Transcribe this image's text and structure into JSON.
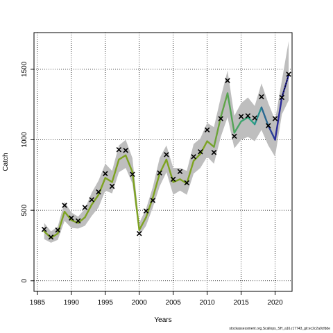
{
  "chart_data": {
    "type": "line",
    "xlabel": "Years",
    "ylabel": "Catch",
    "xlim": [
      1984.5,
      2022.5
    ],
    "ylim": [
      -75,
      1760
    ],
    "xticks": [
      1985,
      1990,
      1995,
      2000,
      2005,
      2010,
      2015,
      2020
    ],
    "yticks": [
      0,
      500,
      1000,
      1500
    ],
    "grid": true,
    "years": [
      1986,
      1987,
      1988,
      1989,
      1990,
      1991,
      1992,
      1993,
      1994,
      1995,
      1996,
      1997,
      1998,
      1999,
      2000,
      2001,
      2002,
      2003,
      2004,
      2005,
      2006,
      2007,
      2008,
      2009,
      2010,
      2011,
      2012,
      2013,
      2014,
      2015,
      2016,
      2017,
      2018,
      2019,
      2020,
      2021,
      2022
    ],
    "observed": [
      365,
      310,
      360,
      535,
      445,
      425,
      520,
      575,
      630,
      760,
      670,
      930,
      925,
      755,
      335,
      495,
      570,
      765,
      895,
      720,
      775,
      695,
      880,
      915,
      1070,
      910,
      1150,
      1420,
      1025,
      1165,
      1170,
      1155,
      1305,
      1100,
      1150,
      1300,
      1465
    ],
    "fit": [
      350,
      305,
      335,
      490,
      430,
      410,
      450,
      540,
      610,
      730,
      700,
      860,
      890,
      770,
      360,
      450,
      590,
      760,
      860,
      700,
      720,
      690,
      850,
      900,
      990,
      950,
      1160,
      1330,
      1050,
      1130,
      1160,
      1110,
      1230,
      1100,
      1000,
      1300,
      1460
    ],
    "lower": [
      295,
      270,
      290,
      425,
      375,
      370,
      390,
      460,
      520,
      640,
      620,
      770,
      800,
      690,
      320,
      390,
      520,
      670,
      770,
      610,
      640,
      610,
      760,
      800,
      880,
      830,
      1020,
      1160,
      940,
      1000,
      1020,
      990,
      1070,
      960,
      880,
      1180,
      1280
    ],
    "upper": [
      410,
      350,
      385,
      560,
      485,
      455,
      510,
      625,
      710,
      830,
      780,
      960,
      1000,
      870,
      410,
      510,
      665,
      870,
      960,
      800,
      800,
      780,
      970,
      1010,
      1120,
      1090,
      1300,
      1490,
      1170,
      1260,
      1300,
      1240,
      1400,
      1260,
      1140,
      1420,
      1700
    ],
    "colors": {
      "band": "#bebebe",
      "fit_start": "#7ea321",
      "fit_mid": "#2aa58a",
      "fit_end": "#2a2a9a",
      "points": "#000000",
      "grid": "#000000"
    }
  },
  "footer": "stockassessment.org,Scallops_SH_a16,r17743_git:ec2c2a0cfdde"
}
